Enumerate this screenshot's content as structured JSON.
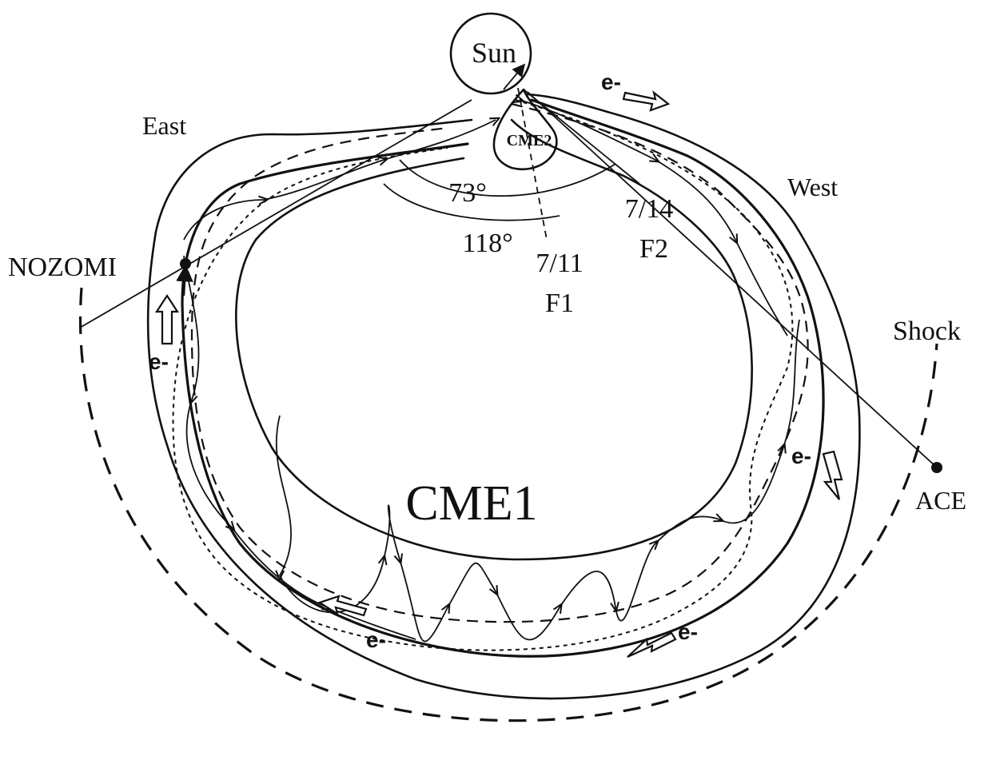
{
  "labels": {
    "sun": "Sun",
    "cme2": "CME2",
    "cme1": "CME1",
    "east": "East",
    "west": "West",
    "nozomi": "NOZOMI",
    "ace": "ACE",
    "shock": "Shock",
    "angle_small": "73°",
    "angle_large": "118°",
    "f1_date": "7/11",
    "f1_name": "F1",
    "f2_date": "7/14",
    "f2_name": "F2",
    "electron": "e-"
  },
  "colors": {
    "ink": "#111111",
    "background": "#ffffff"
  }
}
